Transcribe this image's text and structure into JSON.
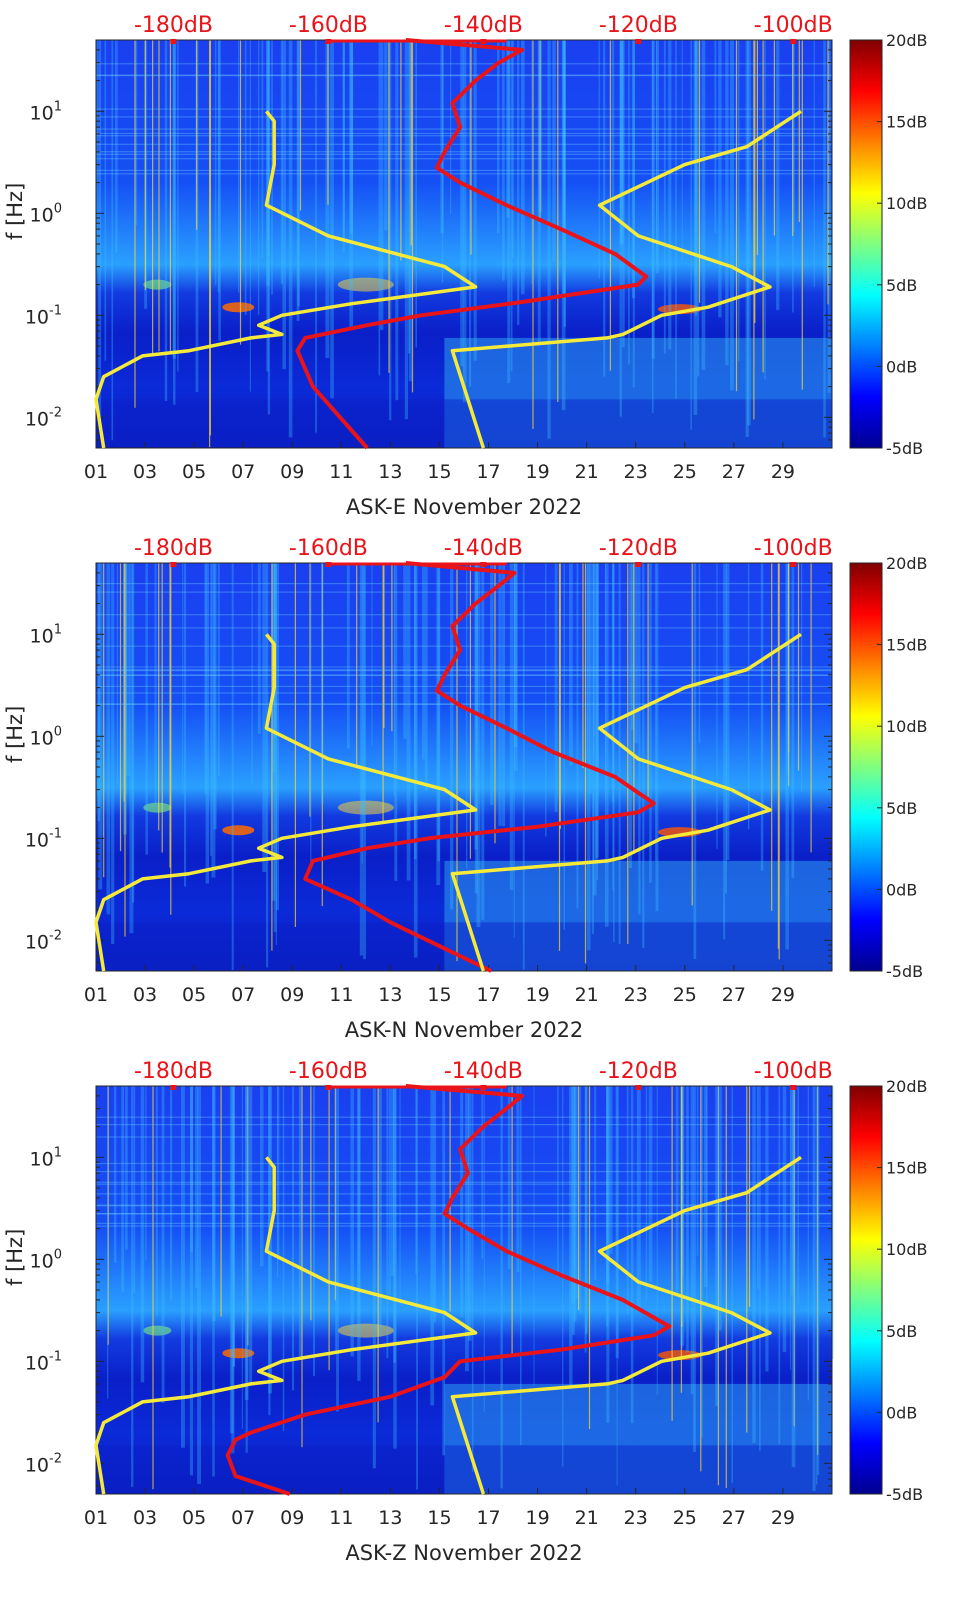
{
  "colors": {
    "psd_line": "#e8141a",
    "reference_line": "#f5ea3a",
    "colormap": [
      "#00008f",
      "#0000ff",
      "#0080ff",
      "#00ffff",
      "#80ff80",
      "#ffff00",
      "#ff8000",
      "#ff0000",
      "#800000"
    ]
  },
  "chart_data": [
    {
      "type": "heatmap",
      "xlabel": "ASK-E November 2022",
      "ylabel": "f [Hz]",
      "x_ticks": [
        "01",
        "03",
        "05",
        "07",
        "09",
        "11",
        "13",
        "15",
        "17",
        "19",
        "21",
        "23",
        "25",
        "27",
        "29"
      ],
      "xlim_days": [
        1,
        31
      ],
      "y_ticks": [
        {
          "value": 0.01,
          "base": "10",
          "exp": "-2"
        },
        {
          "value": 0.1,
          "base": "10",
          "exp": "-1"
        },
        {
          "value": 1,
          "base": "10",
          "exp": "0"
        },
        {
          "value": 10,
          "base": "10",
          "exp": "1"
        }
      ],
      "ylim_hz": [
        0.005,
        50
      ],
      "top_axis": {
        "labels": [
          "-180dB",
          "-160dB",
          "-140dB",
          "-120dB",
          "-100dB"
        ],
        "values_db": [
          -180,
          -160,
          -140,
          -120,
          -100
        ],
        "range_db": [
          -190,
          -95
        ]
      },
      "colorbar": {
        "labels": [
          "20dB",
          "15dB",
          "10dB",
          "5dB",
          "0dB",
          "-5dB"
        ],
        "range_db": [
          -5,
          20
        ]
      },
      "series": [
        {
          "name": "station PSD (red)",
          "points_db_hz": [
            [
              -155,
              0.005
            ],
            [
              -162,
              0.02
            ],
            [
              -164,
              0.045
            ],
            [
              -163,
              0.06
            ],
            [
              -155,
              0.08
            ],
            [
              -148,
              0.1
            ],
            [
              -135,
              0.135
            ],
            [
              -120,
              0.2
            ],
            [
              -119,
              0.24
            ],
            [
              -123,
              0.4
            ],
            [
              -130,
              0.7
            ],
            [
              -137,
              1.2
            ],
            [
              -143,
              2
            ],
            [
              -146,
              2.8
            ],
            [
              -145,
              4
            ],
            [
              -143,
              7
            ],
            [
              -144,
              12
            ],
            [
              -141,
              20
            ],
            [
              -138,
              30
            ],
            [
              -135,
              40
            ],
            [
              -150,
              50
            ]
          ]
        },
        {
          "name": "low noise model (yellow, left)",
          "points_db_hz": [
            [
              -189,
              0.005
            ],
            [
              -190,
              0.015
            ],
            [
              -189,
              0.025
            ],
            [
              -184,
              0.04
            ],
            [
              -178,
              0.045
            ],
            [
              -170,
              0.06
            ],
            [
              -166,
              0.065
            ],
            [
              -169,
              0.08
            ],
            [
              -166,
              0.1
            ],
            [
              -157,
              0.13
            ],
            [
              -141,
              0.19
            ],
            [
              -145,
              0.3
            ],
            [
              -160,
              0.6
            ],
            [
              -168,
              1.2
            ],
            [
              -167,
              3
            ],
            [
              -167,
              8
            ],
            [
              -168,
              10
            ]
          ]
        },
        {
          "name": "high noise model (yellow, right)",
          "points_db_hz": [
            [
              -140,
              0.005
            ],
            [
              -144,
              0.045
            ],
            [
              -124,
              0.06
            ],
            [
              -122,
              0.065
            ],
            [
              -117,
              0.1
            ],
            [
              -111,
              0.12
            ],
            [
              -103,
              0.19
            ],
            [
              -108,
              0.3
            ],
            [
              -120,
              0.6
            ],
            [
              -125,
              1.2
            ],
            [
              -114,
              3
            ],
            [
              -106,
              4.5
            ],
            [
              -99,
              10
            ]
          ]
        }
      ]
    },
    {
      "type": "heatmap",
      "xlabel": "ASK-N November 2022",
      "ylabel": "f [Hz]",
      "x_ticks": [
        "01",
        "03",
        "05",
        "07",
        "09",
        "11",
        "13",
        "15",
        "17",
        "19",
        "21",
        "23",
        "25",
        "27",
        "29"
      ],
      "xlim_days": [
        1,
        31
      ],
      "y_ticks": [
        {
          "value": 0.01,
          "base": "10",
          "exp": "-2"
        },
        {
          "value": 0.1,
          "base": "10",
          "exp": "-1"
        },
        {
          "value": 1,
          "base": "10",
          "exp": "0"
        },
        {
          "value": 10,
          "base": "10",
          "exp": "1"
        }
      ],
      "ylim_hz": [
        0.005,
        50
      ],
      "top_axis": {
        "labels": [
          "-180dB",
          "-160dB",
          "-140dB",
          "-120dB",
          "-100dB"
        ],
        "values_db": [
          -180,
          -160,
          -140,
          -120,
          -100
        ],
        "range_db": [
          -190,
          -95
        ]
      },
      "colorbar": {
        "labels": [
          "20dB",
          "15dB",
          "10dB",
          "5dB",
          "0dB",
          "-5dB"
        ],
        "range_db": [
          -5,
          20
        ]
      },
      "series": [
        {
          "name": "station PSD (red)",
          "points_db_hz": [
            [
              -139,
              0.005
            ],
            [
              -152,
              0.015
            ],
            [
              -157,
              0.025
            ],
            [
              -163,
              0.04
            ],
            [
              -162,
              0.06
            ],
            [
              -155,
              0.08
            ],
            [
              -147,
              0.1
            ],
            [
              -133,
              0.13
            ],
            [
              -120,
              0.18
            ],
            [
              -118,
              0.22
            ],
            [
              -123,
              0.4
            ],
            [
              -131,
              0.7
            ],
            [
              -137,
              1.2
            ],
            [
              -143,
              2
            ],
            [
              -146,
              2.8
            ],
            [
              -145,
              4
            ],
            [
              -143,
              7
            ],
            [
              -144,
              12
            ],
            [
              -141,
              20
            ],
            [
              -138,
              30
            ],
            [
              -136,
              40
            ],
            [
              -150,
              50
            ]
          ]
        },
        {
          "name": "low noise model (yellow, left)",
          "points_db_hz": [
            [
              -189,
              0.005
            ],
            [
              -190,
              0.015
            ],
            [
              -189,
              0.025
            ],
            [
              -184,
              0.04
            ],
            [
              -178,
              0.045
            ],
            [
              -170,
              0.06
            ],
            [
              -166,
              0.065
            ],
            [
              -169,
              0.08
            ],
            [
              -166,
              0.1
            ],
            [
              -157,
              0.13
            ],
            [
              -141,
              0.19
            ],
            [
              -145,
              0.3
            ],
            [
              -160,
              0.6
            ],
            [
              -168,
              1.2
            ],
            [
              -167,
              3
            ],
            [
              -167,
              8
            ],
            [
              -168,
              10
            ]
          ]
        },
        {
          "name": "high noise model (yellow, right)",
          "points_db_hz": [
            [
              -140,
              0.005
            ],
            [
              -144,
              0.045
            ],
            [
              -124,
              0.06
            ],
            [
              -122,
              0.065
            ],
            [
              -117,
              0.1
            ],
            [
              -111,
              0.12
            ],
            [
              -103,
              0.19
            ],
            [
              -108,
              0.3
            ],
            [
              -120,
              0.6
            ],
            [
              -125,
              1.2
            ],
            [
              -114,
              3
            ],
            [
              -106,
              4.5
            ],
            [
              -99,
              10
            ]
          ]
        }
      ]
    },
    {
      "type": "heatmap",
      "xlabel": "ASK-Z November 2022",
      "ylabel": "f [Hz]",
      "x_ticks": [
        "01",
        "03",
        "05",
        "07",
        "09",
        "11",
        "13",
        "15",
        "17",
        "19",
        "21",
        "23",
        "25",
        "27",
        "29"
      ],
      "xlim_days": [
        1,
        31
      ],
      "y_ticks": [
        {
          "value": 0.01,
          "base": "10",
          "exp": "-2"
        },
        {
          "value": 0.1,
          "base": "10",
          "exp": "-1"
        },
        {
          "value": 1,
          "base": "10",
          "exp": "0"
        },
        {
          "value": 10,
          "base": "10",
          "exp": "1"
        }
      ],
      "ylim_hz": [
        0.005,
        50
      ],
      "top_axis": {
        "labels": [
          "-180dB",
          "-160dB",
          "-140dB",
          "-120dB",
          "-100dB"
        ],
        "values_db": [
          -180,
          -160,
          -140,
          -120,
          -100
        ],
        "range_db": [
          -190,
          -95
        ]
      },
      "colorbar": {
        "labels": [
          "20dB",
          "15dB",
          "10dB",
          "5dB",
          "0dB",
          "-5dB"
        ],
        "range_db": [
          -5,
          20
        ]
      },
      "series": [
        {
          "name": "station PSD (red)",
          "points_db_hz": [
            [
              -165,
              0.005
            ],
            [
              -172,
              0.0075
            ],
            [
              -173,
              0.012
            ],
            [
              -172,
              0.017
            ],
            [
              -170,
              0.02
            ],
            [
              -163,
              0.03
            ],
            [
              -152,
              0.045
            ],
            [
              -145,
              0.07
            ],
            [
              -143,
              0.1
            ],
            [
              -130,
              0.13
            ],
            [
              -118,
              0.18
            ],
            [
              -116,
              0.22
            ],
            [
              -122,
              0.4
            ],
            [
              -130,
              0.7
            ],
            [
              -137,
              1.2
            ],
            [
              -142,
              2
            ],
            [
              -145,
              2.8
            ],
            [
              -144,
              4
            ],
            [
              -142,
              7
            ],
            [
              -143,
              12
            ],
            [
              -140,
              20
            ],
            [
              -137,
              30
            ],
            [
              -135,
              40
            ],
            [
              -150,
              50
            ]
          ]
        },
        {
          "name": "low noise model (yellow, left)",
          "points_db_hz": [
            [
              -189,
              0.005
            ],
            [
              -190,
              0.015
            ],
            [
              -189,
              0.025
            ],
            [
              -184,
              0.04
            ],
            [
              -178,
              0.045
            ],
            [
              -170,
              0.06
            ],
            [
              -166,
              0.065
            ],
            [
              -169,
              0.08
            ],
            [
              -166,
              0.1
            ],
            [
              -157,
              0.13
            ],
            [
              -141,
              0.19
            ],
            [
              -145,
              0.3
            ],
            [
              -160,
              0.6
            ],
            [
              -168,
              1.2
            ],
            [
              -167,
              3
            ],
            [
              -167,
              8
            ],
            [
              -168,
              10
            ]
          ]
        },
        {
          "name": "high noise model (yellow, right)",
          "points_db_hz": [
            [
              -140,
              0.005
            ],
            [
              -144,
              0.045
            ],
            [
              -124,
              0.06
            ],
            [
              -122,
              0.065
            ],
            [
              -117,
              0.1
            ],
            [
              -111,
              0.12
            ],
            [
              -103,
              0.19
            ],
            [
              -108,
              0.3
            ],
            [
              -120,
              0.6
            ],
            [
              -125,
              1.2
            ],
            [
              -114,
              3
            ],
            [
              -106,
              4.5
            ],
            [
              -99,
              10
            ]
          ]
        }
      ]
    }
  ]
}
